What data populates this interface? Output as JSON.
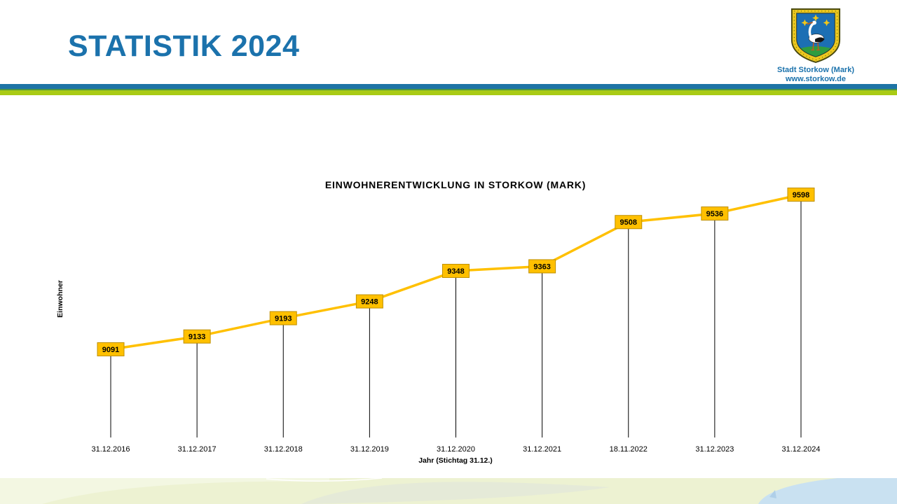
{
  "slide": {
    "title": "STATISTIK 2024",
    "logo": {
      "org_name": "Stadt Storkow (Mark)",
      "website": "www.storkow.de",
      "crest_icon": "storkow-coat-of-arms-stork-shield"
    }
  },
  "colors": {
    "title_blue": "#1B72AC",
    "stripe_blue": "#1E74A6",
    "stripe_green": "#A9CB15",
    "chart_line_gold": "#FFC000",
    "data_label_fill": "#FFC000",
    "data_label_border": "#BF9000",
    "drop_line_black": "#000000",
    "footer_band_green": "#EDF2D2",
    "footer_swoosh_grey": "#E5EAD8",
    "footer_blue": "#C9E1F1"
  },
  "chart_data": {
    "type": "line",
    "title": "EINWOHNERENTWICKLUNG  IN STORKOW (MARK)",
    "xlabel": "Jahr (Stichtag 31.12.)",
    "ylabel": "Einwohner",
    "categories": [
      "31.12.2016",
      "31.12.2017",
      "31.12.2018",
      "31.12.2019",
      "31.12.2020",
      "31.12.2021",
      "18.11.2022",
      "31.12.2023",
      "31.12.2024"
    ],
    "values": [
      9091,
      9133,
      9193,
      9248,
      9348,
      9363,
      9508,
      9536,
      9598
    ],
    "series_name": "Einwohner",
    "line_color": "#FFC000",
    "data_label_fill": "#FFC000",
    "data_label_border": "#BF9000",
    "data_labels": true,
    "drop_lines": true,
    "grid": false,
    "legend_position": "none",
    "ylim": [
      9050,
      9650
    ]
  }
}
